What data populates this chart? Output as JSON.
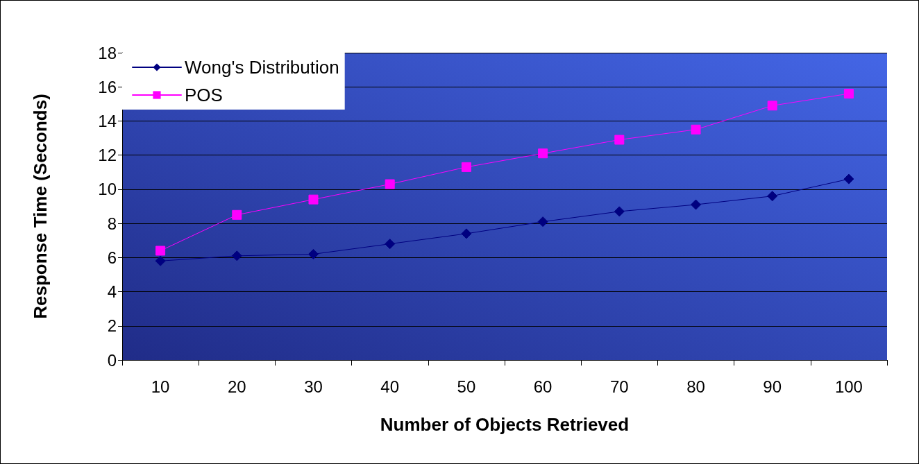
{
  "chart_data": {
    "type": "line",
    "xlabel": "Number of Objects Retrieved",
    "ylabel": "Response Time (Seconds)",
    "categories": [
      "10",
      "20",
      "30",
      "40",
      "50",
      "60",
      "70",
      "80",
      "90",
      "100"
    ],
    "series": [
      {
        "name": "Wong's Distribution",
        "color": "#000080",
        "marker": "diamond",
        "values": [
          5.8,
          6.1,
          6.2,
          6.8,
          7.4,
          8.1,
          8.7,
          9.1,
          9.6,
          10.6
        ]
      },
      {
        "name": "POS",
        "color": "#ff00ff",
        "marker": "square",
        "values": [
          6.4,
          8.5,
          9.4,
          10.3,
          11.3,
          12.1,
          12.9,
          13.5,
          14.9,
          15.6
        ]
      }
    ],
    "ylim": [
      0,
      18
    ],
    "yticks": [
      0,
      2,
      4,
      6,
      8,
      10,
      12,
      14,
      16,
      18
    ],
    "grid": "y",
    "legend": "top left",
    "line_style": "solid"
  }
}
